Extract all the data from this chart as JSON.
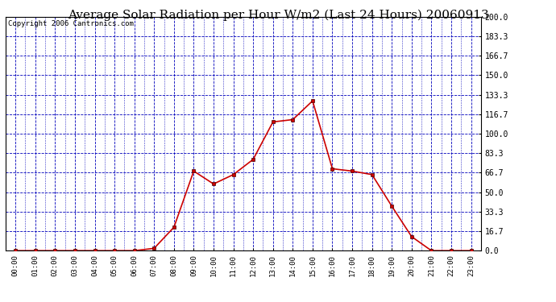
{
  "title": "Average Solar Radiation per Hour W/m2 (Last 24 Hours) 20060913",
  "copyright": "Copyright 2006 Cantronics.com",
  "hours": [
    "00:00",
    "01:00",
    "02:00",
    "03:00",
    "04:00",
    "05:00",
    "06:00",
    "07:00",
    "08:00",
    "09:00",
    "10:00",
    "11:00",
    "12:00",
    "13:00",
    "14:00",
    "15:00",
    "16:00",
    "17:00",
    "18:00",
    "19:00",
    "20:00",
    "21:00",
    "22:00",
    "23:00"
  ],
  "values": [
    0.0,
    0.0,
    0.0,
    0.0,
    0.0,
    0.0,
    0.0,
    2.0,
    20.0,
    68.0,
    57.0,
    65.0,
    78.0,
    110.0,
    112.0,
    128.0,
    70.0,
    68.0,
    65.0,
    38.0,
    12.0,
    0.0,
    0.0,
    0.0
  ],
  "ylim": [
    0,
    200
  ],
  "yticks": [
    0.0,
    16.7,
    33.3,
    50.0,
    66.7,
    83.3,
    100.0,
    116.7,
    133.3,
    150.0,
    166.7,
    183.3,
    200.0
  ],
  "ytick_labels": [
    "0.0",
    "16.7",
    "33.3",
    "50.0",
    "66.7",
    "83.3",
    "100.0",
    "116.7",
    "133.3",
    "150.0",
    "166.7",
    "183.3",
    "200.0"
  ],
  "line_color": "#cc0000",
  "marker_color": "#cc0000",
  "grid_color": "#0000bb",
  "bg_color": "#ffffff",
  "plot_bg_color": "#ffffff",
  "title_fontsize": 11,
  "copyright_fontsize": 6.5
}
